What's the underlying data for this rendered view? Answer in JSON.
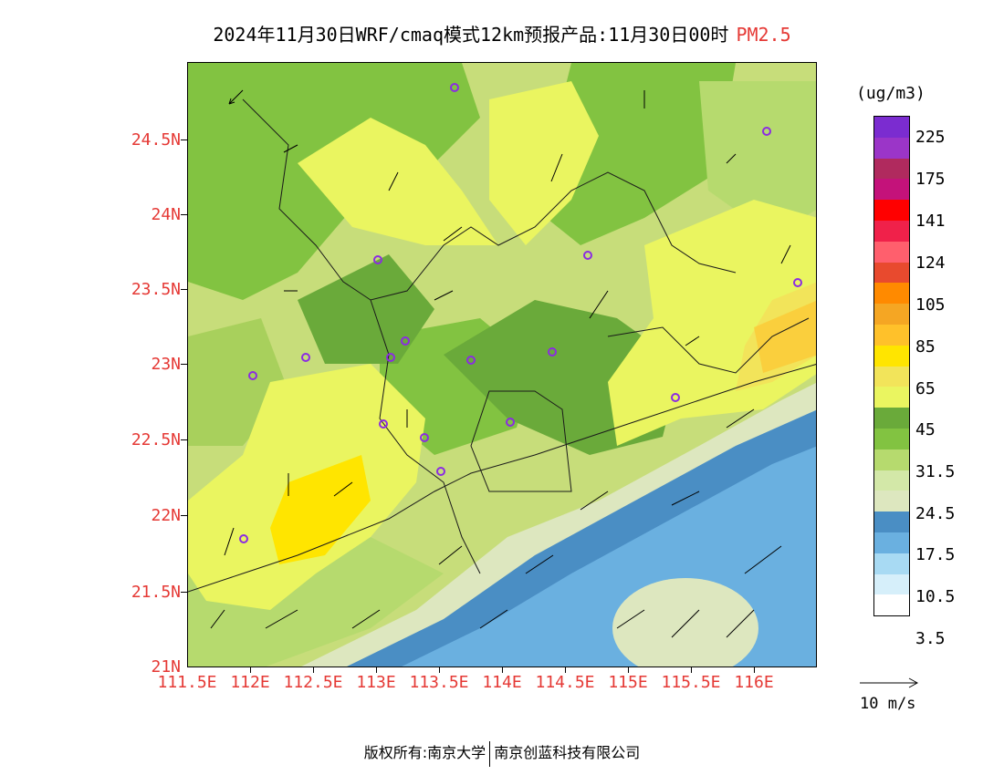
{
  "title": {
    "main": "2024年11月30日WRF/cmaq模式12km预报产品:11月30日00时",
    "pollutant": "PM2.5"
  },
  "map": {
    "lat_labels": [
      "24.5N",
      "24N",
      "23.5N",
      "23N",
      "22.5N",
      "22N",
      "21.5N",
      "21N"
    ],
    "lon_labels": [
      "111.5E",
      "112E",
      "112.5E",
      "113E",
      "113.5E",
      "114E",
      "114.5E",
      "115E",
      "115.5E",
      "116E"
    ]
  },
  "colorbar": {
    "unit": "(ug/m3)",
    "labels": [
      "225",
      "175",
      "141",
      "124",
      "105",
      "85",
      "65",
      "45",
      "31.5",
      "24.5",
      "17.5",
      "10.5",
      "3.5"
    ],
    "colors": [
      "#7b2cd0",
      "#9b35c8",
      "#b02a5e",
      "#c4127a",
      "#ff0000",
      "#f0214a",
      "#ff5f6d",
      "#e84a2e",
      "#ff8a00",
      "#f5a623",
      "#ffc12a",
      "#ffe500",
      "#f2e45a",
      "#eaf560",
      "#6aaa3a",
      "#82c341",
      "#b6da6e",
      "#d3e8a8",
      "#dde7bf",
      "#4a8ec4",
      "#6ab0e0",
      "#a8daf3",
      "#d6effa",
      "#ffffff"
    ]
  },
  "wind": {
    "reference_label": "10 m/s"
  },
  "footer": {
    "left": "版权所有:南京大学",
    "right": "南京创蓝科技有限公司"
  }
}
